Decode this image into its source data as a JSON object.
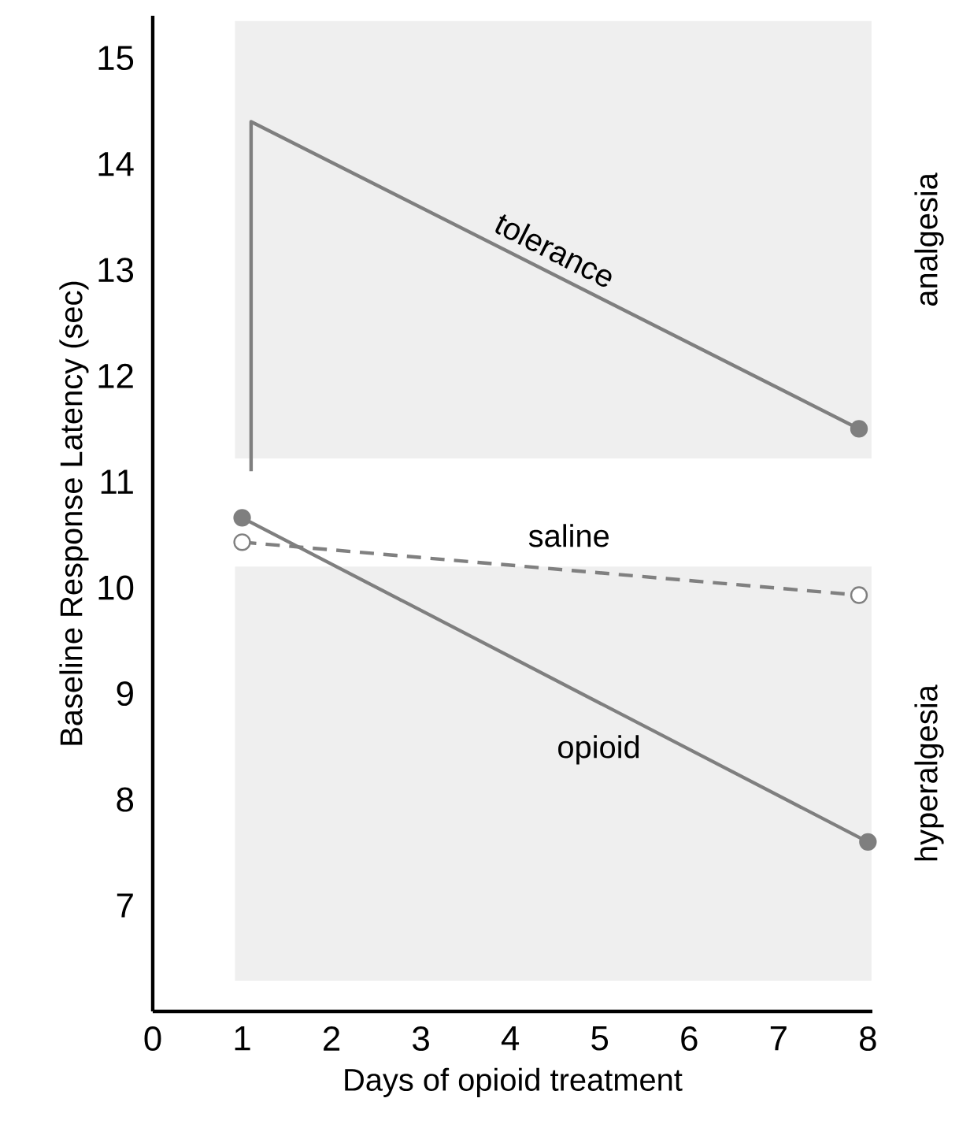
{
  "chart_data": {
    "type": "line",
    "xlabel": "Days of opioid treatment",
    "ylabel": "Baseline Response Latency (sec)",
    "xlim": [
      0,
      8.05
    ],
    "xticks": [
      0,
      1,
      2,
      3,
      4,
      5,
      6,
      7,
      8
    ],
    "ylim": [
      6,
      15.4
    ],
    "yticks": [
      7,
      8,
      9,
      10,
      11,
      12,
      13,
      14,
      15
    ],
    "grid": false,
    "bands": [
      {
        "axis": "y",
        "from": 11.22,
        "to": 15.35,
        "label": "analgesia",
        "color": "#efefef"
      },
      {
        "axis": "y",
        "from": 6.29,
        "to": 10.2,
        "label": "hyperalgesia",
        "color": "#efefef"
      }
    ],
    "series": [
      {
        "name": "tolerance",
        "color": "#7f7f7f",
        "x": [
          1.1,
          1.1,
          7.9
        ],
        "values": [
          11.1,
          14.4,
          11.5
        ],
        "marker": "none",
        "line_style": "solid"
      },
      {
        "type": "scatter",
        "color": "#7f7f7f",
        "x": [
          7.9
        ],
        "values": [
          11.5
        ],
        "marker": "circle"
      },
      {
        "name": "saline",
        "color": "#808080",
        "x": [
          1,
          7.9
        ],
        "values": [
          10.43,
          9.93
        ],
        "marker": "circle",
        "line_style": "dashed"
      },
      {
        "name": "opioid",
        "color": "#7f7f7f",
        "x": [
          1,
          8
        ],
        "values": [
          10.66,
          7.6
        ],
        "marker": "circle",
        "line_style": "solid"
      }
    ]
  }
}
